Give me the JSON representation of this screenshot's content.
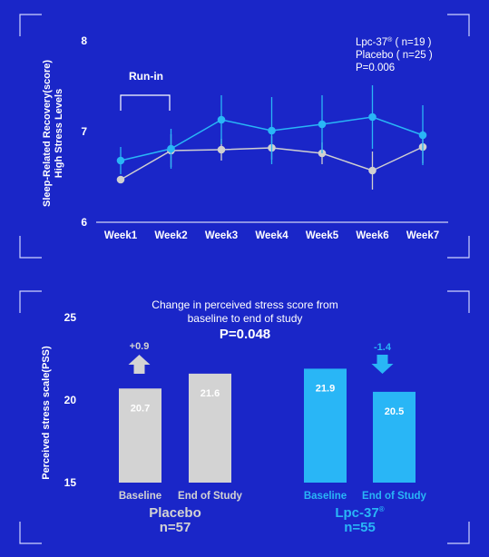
{
  "chart_data": [
    {
      "type": "line",
      "ylabel": "Sleep-Related Recovery(score)\nHigh Stress Levels",
      "ylim": [
        6,
        8
      ],
      "yticks": [
        "6",
        "7",
        "8"
      ],
      "categories": [
        "Week1",
        "Week2",
        "Week3",
        "Week4",
        "Week5",
        "Week6",
        "Week7"
      ],
      "series": [
        {
          "name": "Lpc-37®",
          "n_label": "( n=19 )",
          "color": "#29b6f6",
          "values": [
            6.68,
            6.81,
            7.13,
            7.01,
            7.08,
            7.16,
            6.96
          ],
          "errors": [
            0.15,
            0.22,
            0.27,
            0.37,
            0.32,
            0.35,
            0.33
          ]
        },
        {
          "name": "Placebo",
          "n_label": "( n=25 )",
          "color": "#d0d0d0",
          "values": [
            6.47,
            6.79,
            6.8,
            6.82,
            6.76,
            6.57,
            6.83
          ],
          "errors": [
            0.0,
            0.18,
            0.12,
            0.13,
            0.12,
            0.21,
            0.18
          ]
        }
      ],
      "legend_pvalue": "P=0.006",
      "annotation": "Run-in",
      "legend_position": "top-right"
    },
    {
      "type": "bar",
      "title": "Change in perceived stress score from\nbaseline to end of study",
      "pvalue": "P=0.048",
      "ylabel": "Perceived stress scale(PSS)",
      "ylim": [
        15,
        25
      ],
      "yticks": [
        "15",
        "20",
        "25"
      ],
      "groups": [
        {
          "name": "Placebo",
          "n": "n=57",
          "color": "#d3d3d3",
          "label_color": "#d3d3d3",
          "change_label": "+0.9",
          "change_direction": "up",
          "categories": [
            "Baseline",
            "End of Study"
          ],
          "values": [
            20.7,
            21.6
          ],
          "value_labels": [
            "20.7",
            "21.6"
          ]
        },
        {
          "name": "Lpc-37®",
          "n": "n=55",
          "color": "#29b6f6",
          "label_color": "#29b6f6",
          "change_label": "-1.4",
          "change_direction": "down",
          "categories": [
            "Baseline",
            "End of Study"
          ],
          "values": [
            21.9,
            20.5
          ],
          "value_labels": [
            "21.9",
            "20.5"
          ]
        }
      ]
    }
  ]
}
